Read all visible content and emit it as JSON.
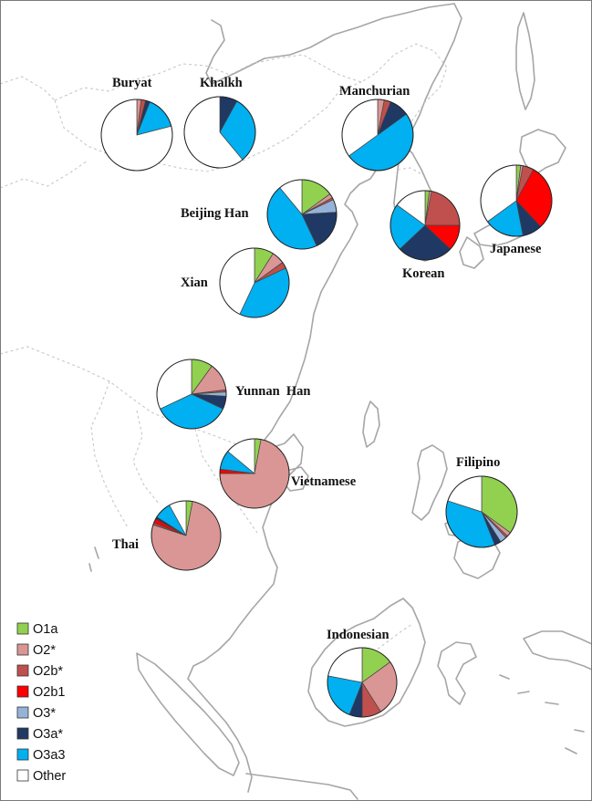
{
  "colors": {
    "O1a": "#92d050",
    "O2*": "#d99694",
    "O2b*": "#c0504d",
    "O2b1": "#ff0000",
    "O3*": "#95b3d7",
    "O3a*": "#1f3864",
    "O3a3": "#00b0f0",
    "Other": "#ffffff"
  },
  "legend": [
    {
      "key": "O1a",
      "label": "O1a"
    },
    {
      "key": "O2*",
      "label": "O2*"
    },
    {
      "key": "O2b*",
      "label": "O2b*"
    },
    {
      "key": "O2b1",
      "label": "O2b1"
    },
    {
      "key": "O3*",
      "label": "O3*"
    },
    {
      "key": "O3a*",
      "label": "O3a*"
    },
    {
      "key": "O3a3",
      "label": "O3a3"
    },
    {
      "key": "Other",
      "label": "Other"
    }
  ],
  "populations": [
    {
      "id": "buryat",
      "label": "Buryat",
      "shares": {
        "O1a": 0,
        "O2*": 2,
        "O2b*": 2,
        "O2b1": 0,
        "O3*": 0,
        "O3a*": 2,
        "O3a3": 15,
        "Other": 79
      }
    },
    {
      "id": "khalkh",
      "label": "Khalkh",
      "shares": {
        "O1a": 0,
        "O2*": 0,
        "O2b*": 0,
        "O2b1": 0,
        "O3*": 0,
        "O3a*": 8,
        "O3a3": 31,
        "Other": 61
      }
    },
    {
      "id": "manchurian",
      "label": "Manchurian",
      "shares": {
        "O1a": 0,
        "O2*": 3,
        "O2b*": 3,
        "O2b1": 0,
        "O3*": 0,
        "O3a*": 9,
        "O3a3": 50,
        "Other": 35
      }
    },
    {
      "id": "beijing_han",
      "label": "Beijing Han",
      "shares": {
        "O1a": 15,
        "O2*": 2,
        "O2b*": 1,
        "O2b1": 0,
        "O3*": 6,
        "O3a*": 19,
        "O3a3": 46,
        "Other": 11
      }
    },
    {
      "id": "korean",
      "label": "Korean",
      "shares": {
        "O1a": 2,
        "O2*": 1,
        "O2b*": 22,
        "O2b1": 12,
        "O3*": 0,
        "O3a*": 26,
        "O3a3": 22,
        "Other": 15
      }
    },
    {
      "id": "japanese",
      "label": "Japanese",
      "shares": {
        "O1a": 2,
        "O2*": 1,
        "O2b*": 5,
        "O2b1": 30,
        "O3*": 0,
        "O3a*": 9,
        "O3a3": 18,
        "Other": 35
      }
    },
    {
      "id": "xian",
      "label": "Xian",
      "shares": {
        "O1a": 9,
        "O2*": 6,
        "O2b*": 3,
        "O2b1": 0,
        "O3*": 0,
        "O3a*": 0,
        "O3a3": 39,
        "Other": 43
      }
    },
    {
      "id": "yunnan_han",
      "label": "Yunnan  Han",
      "shares": {
        "O1a": 10,
        "O2*": 13,
        "O2b*": 1,
        "O2b1": 0,
        "O3*": 2,
        "O3a*": 6,
        "O3a3": 36,
        "Other": 32
      }
    },
    {
      "id": "vietnamese",
      "label": "Vietnamese",
      "shares": {
        "O1a": 3,
        "O2*": 72,
        "O2b*": 0,
        "O2b1": 2,
        "O3*": 0,
        "O3a*": 0,
        "O3a3": 9,
        "Other": 14
      }
    },
    {
      "id": "thai",
      "label": "Thai",
      "shares": {
        "O1a": 3,
        "O2*": 77,
        "O2b*": 1,
        "O2b1": 2,
        "O3*": 0,
        "O3a*": 1,
        "O3a3": 8,
        "Other": 8
      }
    },
    {
      "id": "filipino",
      "label": "Filipino",
      "shares": {
        "O1a": 35,
        "O2*": 2,
        "O2b*": 1,
        "O2b1": 0,
        "O3*": 3,
        "O3a*": 3,
        "O3a3": 36,
        "Other": 20
      }
    },
    {
      "id": "indonesian",
      "label": "Indonesian",
      "shares": {
        "O1a": 15,
        "O2*": 26,
        "O2b*": 9,
        "O2b1": 0,
        "O3*": 0,
        "O3a*": 6,
        "O3a3": 22,
        "Other": 22
      }
    }
  ]
}
